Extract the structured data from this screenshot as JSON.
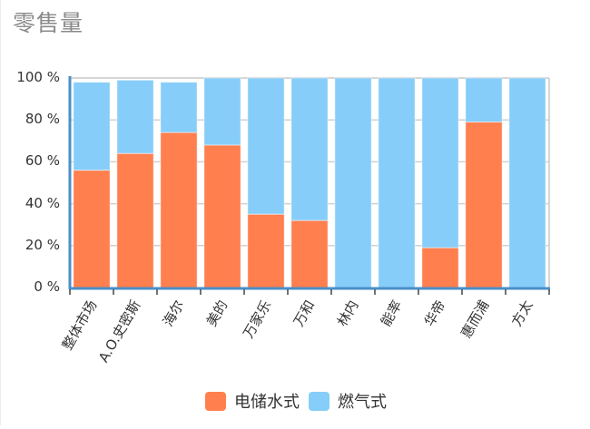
{
  "title": "零售量",
  "colors": {
    "electric": "#ff7f4e",
    "gas": "#87cdf9",
    "axis": "#4a8fc8",
    "grid": "#d0d0d0"
  },
  "legend": [
    {
      "label": "电储水式",
      "color": "#ff7f4e"
    },
    {
      "label": "燃气式",
      "color": "#87cdf9"
    }
  ],
  "chart_data": {
    "type": "bar",
    "stacked": true,
    "title": "零售量",
    "xlabel": "",
    "ylabel": "",
    "ylim": [
      0,
      100
    ],
    "y_ticks": [
      "0 %",
      "20 %",
      "40 %",
      "60 %",
      "80 %",
      "100 %"
    ],
    "categories": [
      "整体市场",
      "A.O.史密斯",
      "海尔",
      "美的",
      "万家乐",
      "万和",
      "林内",
      "能率",
      "华帝",
      "惠而浦",
      "方太"
    ],
    "series": [
      {
        "name": "电储水式",
        "values": [
          56,
          64,
          74,
          68,
          35,
          32,
          0,
          0,
          19,
          79,
          0
        ]
      },
      {
        "name": "燃气式",
        "values": [
          42,
          35,
          24,
          32,
          65,
          68,
          100,
          100,
          81,
          21,
          100
        ]
      }
    ],
    "grid": true,
    "legend_position": "bottom"
  }
}
